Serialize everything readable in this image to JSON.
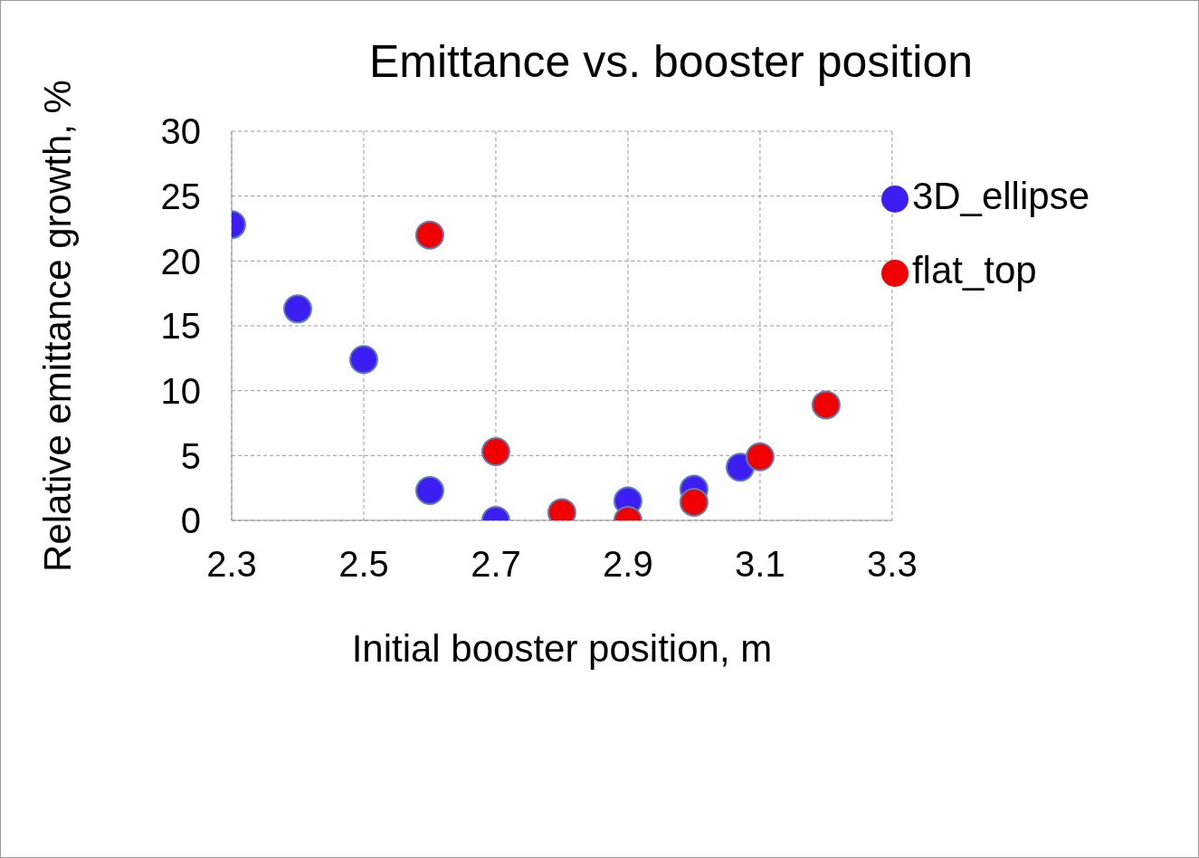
{
  "chart_data": {
    "type": "scatter",
    "title": "Emittance vs. booster position",
    "xlabel": "Initial booster position, m",
    "ylabel": "Relative emittance growth, %",
    "xlim": [
      2.3,
      3.3
    ],
    "xticks": [
      2.3,
      2.5,
      2.7,
      2.9,
      3.1,
      3.3
    ],
    "ylim": [
      0,
      30
    ],
    "yticks": [
      0,
      5,
      10,
      15,
      20,
      25,
      30
    ],
    "grid": true,
    "legend": "top right",
    "marker": "circle",
    "series": [
      {
        "name": "3D_ellipse",
        "color": "#3d1ef2",
        "x": [
          2.3,
          2.4,
          2.5,
          2.6,
          2.7,
          2.9,
          3.0,
          3.07
        ],
        "values": [
          22.8,
          16.3,
          12.4,
          2.3,
          0,
          1.5,
          2.4,
          4.1
        ]
      },
      {
        "name": "flat_top",
        "color": "#f00000",
        "x": [
          2.6,
          2.7,
          2.8,
          2.9,
          3.0,
          3.1,
          3.2
        ],
        "values": [
          22.0,
          5.3,
          0.6,
          0,
          1.4,
          4.9,
          8.9
        ]
      }
    ]
  }
}
